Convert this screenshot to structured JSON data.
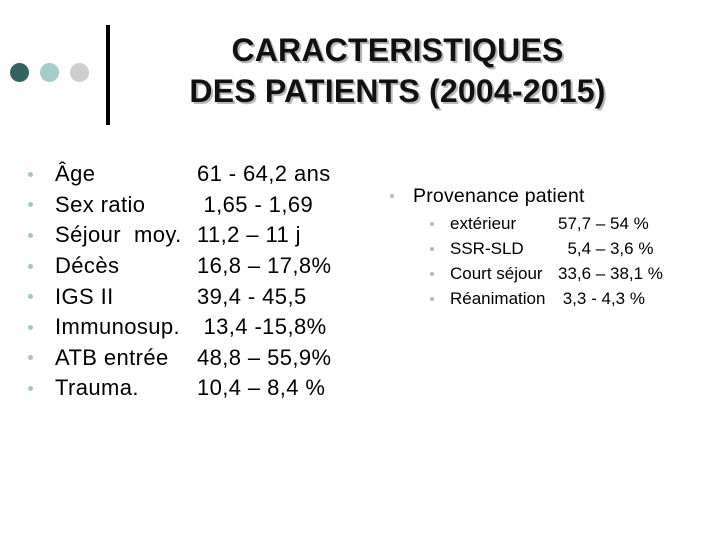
{
  "title": {
    "line1": "CARACTERISTIQUES",
    "line2": "DES PATIENTS (2004-2015)"
  },
  "left_list": {
    "items": [
      {
        "label": "Âge",
        "value": "61 - 64,2 ans"
      },
      {
        "label": "Sex ratio",
        "value": " 1,65 - 1,69"
      },
      {
        "label": "Séjour  moy.",
        "value": "11,2 – 11 j"
      },
      {
        "label": "Décès",
        "value": "16,8 – 17,8%"
      },
      {
        "label": "IGS II",
        "value": "39,4 - 45,5"
      },
      {
        "label": "Immunosup.",
        "value": " 13,4 -15,8%"
      },
      {
        "label": "ATB entrée",
        "value": "48,8 – 55,9%"
      },
      {
        "label": "Trauma.",
        "value": "10,4 – 8,4 %"
      }
    ]
  },
  "provenance": {
    "heading": "Provenance patient",
    "items": [
      {
        "label": "extérieur",
        "value": "57,7 – 54 %"
      },
      {
        "label": "SSR-SLD",
        "value": "  5,4 – 3,6 %"
      },
      {
        "label": "Court séjour",
        "value": "33,6 – 38,1 %"
      },
      {
        "label": "Réanimation",
        "value": " 3,3 - 4,3 %"
      }
    ]
  },
  "colors": {
    "circle_dark_teal": "#336363",
    "circle_light_teal": "#a5cbcb",
    "circle_light_gray": "#cecece",
    "bullet_teal": "#a3c6cb",
    "bullet_gray": "#a8bdc0",
    "title_text": "#111111",
    "title_shadow": "#b8b8b8",
    "body_text": "#000000",
    "background": "#ffffff"
  }
}
